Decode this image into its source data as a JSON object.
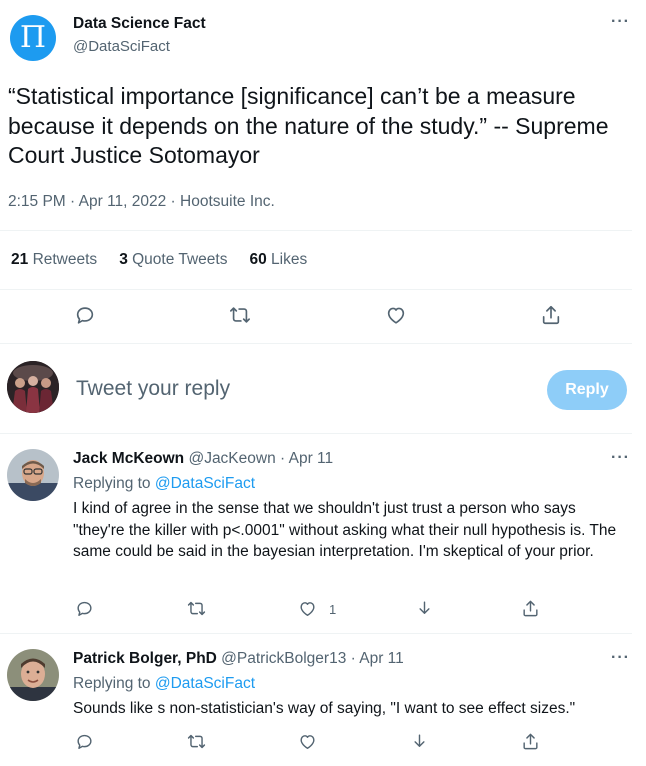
{
  "tweet": {
    "author_name": "Data Science Fact",
    "author_handle": "@DataSciFact",
    "avatar_letter": "Π",
    "text": "“Statistical importance [significance] can’t be a measure because it depends on the nature of the study.” -- Supreme Court Justice Sotomayor",
    "timestamp": "2:15 PM · Apr 11, 2022 · Hootsuite Inc.",
    "stats": [
      {
        "count": "21",
        "label": "Retweets"
      },
      {
        "count": "3",
        "label": "Quote Tweets"
      },
      {
        "count": "60",
        "label": "Likes"
      }
    ],
    "actions": [
      "reply-icon",
      "retweet-icon",
      "like-icon",
      "share-icon"
    ]
  },
  "reply_box": {
    "placeholder": "Tweet your reply",
    "button_label": "Reply"
  },
  "replies": [
    {
      "name": "Jack McKeown",
      "handle": "@JacKeown",
      "date": "· Apr 11",
      "replying_prefix": "Replying to",
      "replying_to": "@DataSciFact",
      "text": "I kind of agree in the sense that we shouldn't just trust a person who says \"they're the killer with p<.0001\" without asking what their null hypothesis is. The same could be said in the bayesian interpretation. I'm skeptical of your prior.",
      "like_count": "1"
    },
    {
      "name": "Patrick Bolger, PhD",
      "handle": "@PatrickBolger13",
      "date": "· Apr 11",
      "replying_prefix": "Replying to",
      "replying_to": "@DataSciFact",
      "text": "Sounds like s non-statistician's way of saying, \"I want to see effect sizes.\"",
      "like_count": ""
    }
  ],
  "colors": {
    "accent": "#1d9bf0",
    "muted": "#536471",
    "reply_button": "#8ecdf8",
    "divider": "#eff3f4"
  }
}
